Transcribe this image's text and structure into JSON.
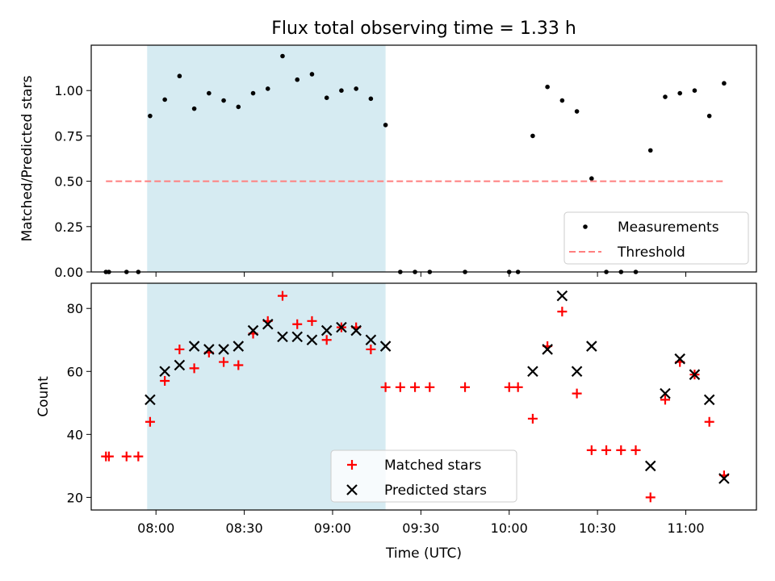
{
  "title": "Flux total observing time = 1.33 h",
  "colors": {
    "shade": "#add8e6",
    "measurement": "#000000",
    "threshold": "#ff7f7f",
    "matched": "#ff0000",
    "predicted": "#000000"
  },
  "chart_data": [
    {
      "type": "scatter",
      "ylabel": "Matched/Predicted stars",
      "ylim": [
        0,
        1.25
      ],
      "xlim": [
        "07:38",
        "11:24"
      ],
      "yticks": [
        "0.00",
        "0.25",
        "0.50",
        "0.75",
        "1.00"
      ],
      "shaded_span": [
        "07:57",
        "09:18"
      ],
      "legend_position": "lower-right",
      "series": [
        {
          "name": "Measurements",
          "marker": "dot",
          "points": [
            [
              "07:43",
              0.0
            ],
            [
              "07:44",
              0.0
            ],
            [
              "07:50",
              0.0
            ],
            [
              "07:54",
              0.0
            ],
            [
              "07:58",
              0.86
            ],
            [
              "08:03",
              0.95
            ],
            [
              "08:08",
              1.08
            ],
            [
              "08:13",
              0.9
            ],
            [
              "08:18",
              0.985
            ],
            [
              "08:23",
              0.945
            ],
            [
              "08:28",
              0.91
            ],
            [
              "08:33",
              0.985
            ],
            [
              "08:38",
              1.01
            ],
            [
              "08:43",
              1.19
            ],
            [
              "08:48",
              1.06
            ],
            [
              "08:53",
              1.09
            ],
            [
              "08:58",
              0.96
            ],
            [
              "09:03",
              1.0
            ],
            [
              "09:08",
              1.01
            ],
            [
              "09:13",
              0.955
            ],
            [
              "09:18",
              0.81
            ],
            [
              "09:23",
              0.0
            ],
            [
              "09:28",
              0.0
            ],
            [
              "09:33",
              0.0
            ],
            [
              "09:45",
              0.0
            ],
            [
              "10:00",
              0.0
            ],
            [
              "10:03",
              0.0
            ],
            [
              "10:08",
              0.75
            ],
            [
              "10:13",
              1.02
            ],
            [
              "10:18",
              0.945
            ],
            [
              "10:23",
              0.885
            ],
            [
              "10:28",
              0.515
            ],
            [
              "10:33",
              0.0
            ],
            [
              "10:38",
              0.0
            ],
            [
              "10:43",
              0.0
            ],
            [
              "10:48",
              0.67
            ],
            [
              "10:53",
              0.965
            ],
            [
              "10:58",
              0.985
            ],
            [
              "11:03",
              1.0
            ],
            [
              "11:08",
              0.86
            ],
            [
              "11:13",
              1.04
            ]
          ]
        },
        {
          "name": "Threshold",
          "type": "line",
          "style": "dashed",
          "points": [
            [
              "07:43",
              0.5
            ],
            [
              "11:13",
              0.5
            ]
          ]
        }
      ]
    },
    {
      "type": "scatter",
      "xlabel": "Time (UTC)",
      "ylabel": "Count",
      "ylim": [
        16,
        88
      ],
      "xlim": [
        "07:38",
        "11:24"
      ],
      "yticks": [
        "20",
        "40",
        "60",
        "80"
      ],
      "xticks": [
        "08:00",
        "08:30",
        "09:00",
        "09:30",
        "10:00",
        "10:30",
        "11:00"
      ],
      "shaded_span": [
        "07:57",
        "09:18"
      ],
      "legend_position": "lower-center",
      "series": [
        {
          "name": "Matched stars",
          "marker": "plus",
          "points": [
            [
              "07:43",
              33
            ],
            [
              "07:44",
              33
            ],
            [
              "07:50",
              33
            ],
            [
              "07:54",
              33
            ],
            [
              "07:58",
              44
            ],
            [
              "08:03",
              57
            ],
            [
              "08:08",
              67
            ],
            [
              "08:13",
              61
            ],
            [
              "08:18",
              66
            ],
            [
              "08:23",
              63
            ],
            [
              "08:28",
              62
            ],
            [
              "08:33",
              72
            ],
            [
              "08:38",
              76
            ],
            [
              "08:43",
              84
            ],
            [
              "08:48",
              75
            ],
            [
              "08:53",
              76
            ],
            [
              "08:58",
              70
            ],
            [
              "09:03",
              74
            ],
            [
              "09:08",
              74
            ],
            [
              "09:13",
              67
            ],
            [
              "09:18",
              55
            ],
            [
              "09:23",
              55
            ],
            [
              "09:28",
              55
            ],
            [
              "09:33",
              55
            ],
            [
              "09:45",
              55
            ],
            [
              "10:00",
              55
            ],
            [
              "10:03",
              55
            ],
            [
              "10:08",
              45
            ],
            [
              "10:13",
              68
            ],
            [
              "10:18",
              79
            ],
            [
              "10:23",
              53
            ],
            [
              "10:28",
              35
            ],
            [
              "10:33",
              35
            ],
            [
              "10:38",
              35
            ],
            [
              "10:43",
              35
            ],
            [
              "10:48",
              20
            ],
            [
              "10:53",
              51
            ],
            [
              "10:58",
              63
            ],
            [
              "11:03",
              59
            ],
            [
              "11:08",
              44
            ],
            [
              "11:13",
              27
            ]
          ]
        },
        {
          "name": "Predicted stars",
          "marker": "x",
          "points": [
            [
              "07:58",
              51
            ],
            [
              "08:03",
              60
            ],
            [
              "08:08",
              62
            ],
            [
              "08:13",
              68
            ],
            [
              "08:18",
              67
            ],
            [
              "08:23",
              67
            ],
            [
              "08:28",
              68
            ],
            [
              "08:33",
              73
            ],
            [
              "08:38",
              75
            ],
            [
              "08:43",
              71
            ],
            [
              "08:48",
              71
            ],
            [
              "08:53",
              70
            ],
            [
              "08:58",
              73
            ],
            [
              "09:03",
              74
            ],
            [
              "09:08",
              73
            ],
            [
              "09:13",
              70
            ],
            [
              "09:18",
              68
            ],
            [
              "10:08",
              60
            ],
            [
              "10:13",
              67
            ],
            [
              "10:18",
              84
            ],
            [
              "10:23",
              60
            ],
            [
              "10:28",
              68
            ],
            [
              "10:48",
              30
            ],
            [
              "10:53",
              53
            ],
            [
              "10:58",
              64
            ],
            [
              "11:03",
              59
            ],
            [
              "11:08",
              51
            ],
            [
              "11:13",
              26
            ]
          ]
        }
      ]
    }
  ]
}
